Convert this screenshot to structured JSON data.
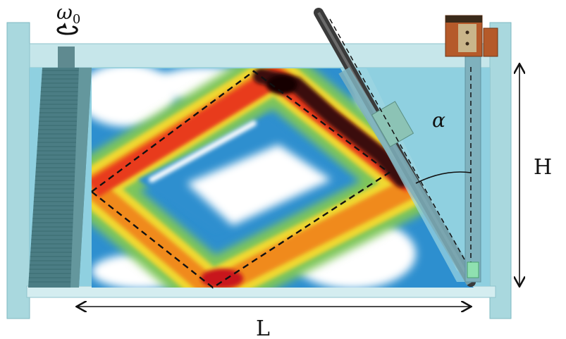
{
  "labels": {
    "omega": "ω",
    "omega_sub": "0",
    "alpha": "α",
    "height": "H",
    "length": "L"
  },
  "colors": {
    "tank_glass": "#a9d8de",
    "tank_frame": "#8fc4cc",
    "water": "#8fd0e0",
    "wavemaker": "#4b7d84",
    "rod": "#3a3a3a",
    "field_low": "#ffffff",
    "field_mid1": "#2d8fcf",
    "field_mid2": "#7fc65a",
    "field_mid3": "#f0d830",
    "field_high1": "#e83a1f",
    "field_high2": "#1a0606"
  },
  "icons": {
    "rotation": "counterclockwise-arrow-icon"
  }
}
